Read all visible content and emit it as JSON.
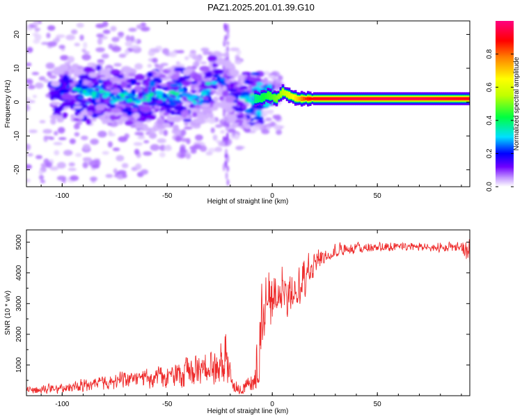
{
  "title": "PAZ1.2025.201.01.39.G10",
  "chart_data": [
    {
      "type": "heatmap",
      "title": "PAZ1.2025.201.01.39.G10",
      "xlabel": "Height of straight line (km)",
      "ylabel": "Frequency (Hz)",
      "xlim": [
        -117,
        94
      ],
      "ylim": [
        -25,
        24
      ],
      "xticks": [
        -100,
        -50,
        0,
        50
      ],
      "xtick_labels": [
        "-100",
        "-50",
        "0",
        "50"
      ],
      "yticks": [
        -20,
        -10,
        0,
        10,
        20
      ],
      "ytick_labels": [
        "-20",
        "-10",
        "0",
        "10",
        "20"
      ],
      "colorbar": {
        "label": "Normalized spectral amplitude",
        "range": [
          0,
          1
        ],
        "ticks": [
          0,
          0.2,
          0.4,
          0.6,
          0.8
        ],
        "tick_labels": [
          "0.0",
          "0.2",
          "0.4",
          "0.6",
          "0.8"
        ],
        "colormap": [
          "#ffffff",
          "#c8a0ff",
          "#7000ff",
          "#0000ff",
          "#00e0ff",
          "#00ff40",
          "#c0ff00",
          "#ffff00",
          "#ff8000",
          "#ff0000",
          "#ff0080"
        ]
      },
      "grid": false,
      "ridge": {
        "x": [
          -115,
          -105,
          -95,
          -88,
          -82,
          -76,
          -70,
          -62,
          -55,
          -50,
          -45,
          -40,
          -35,
          -30,
          -26,
          -22,
          -18,
          -14,
          -10,
          -6,
          -2,
          2,
          5,
          8,
          12,
          16,
          20,
          30,
          50,
          70,
          92
        ],
        "y": [
          1,
          2,
          3,
          2,
          3,
          1,
          2,
          0,
          2,
          1,
          3,
          2,
          0,
          5,
          7,
          6,
          1,
          0,
          1,
          1,
          2,
          1,
          3,
          2,
          1,
          1,
          1,
          1,
          1,
          1,
          1
        ],
        "amplitude": [
          0.15,
          0.25,
          0.3,
          0.3,
          0.3,
          0.25,
          0.3,
          0.3,
          0.35,
          0.25,
          0.35,
          0.3,
          0.25,
          0.3,
          0.2,
          0.2,
          0.2,
          0.25,
          0.35,
          0.4,
          0.45,
          0.5,
          0.55,
          0.6,
          0.7,
          0.85,
          0.9,
          0.92,
          0.95,
          0.95,
          0.9
        ]
      }
    },
    {
      "type": "line",
      "xlabel": "Height of straight line (km)",
      "ylabel": "SNR (10 * v/v)",
      "xlim": [
        -117,
        94
      ],
      "ylim": [
        0,
        5400
      ],
      "xticks": [
        -100,
        -50,
        0,
        50
      ],
      "xtick_labels": [
        "-100",
        "-50",
        "0",
        "50"
      ],
      "yticks": [
        1000,
        2000,
        3000,
        4000,
        5000
      ],
      "ytick_labels": [
        "1000",
        "2000",
        "3000",
        "4000",
        "5000"
      ],
      "grid": false,
      "color": "#ee2a2a",
      "series": [
        {
          "x": [
            -117,
            -110,
            -100,
            -90,
            -80,
            -72,
            -65,
            -58,
            -50,
            -45,
            -40,
            -35,
            -30,
            -25,
            -22,
            -20,
            -18,
            -15,
            -12,
            -10,
            -8,
            -6,
            -4,
            -2,
            0,
            2,
            4,
            6,
            8,
            10,
            12,
            14,
            16,
            18,
            20,
            22,
            25,
            30,
            35,
            40,
            50,
            60,
            70,
            80,
            90,
            94
          ],
          "y": [
            150,
            180,
            250,
            350,
            450,
            500,
            550,
            650,
            700,
            750,
            800,
            850,
            900,
            950,
            900,
            800,
            200,
            100,
            250,
            450,
            200,
            600,
            2700,
            3100,
            3300,
            3400,
            3300,
            3400,
            3000,
            3300,
            3200,
            3500,
            3900,
            4100,
            4300,
            4400,
            4500,
            4600,
            4700,
            4750,
            4800,
            4800,
            4850,
            4800,
            4850,
            4700
          ],
          "upper": [
            300,
            380,
            450,
            600,
            700,
            850,
            800,
            1000,
            1100,
            1200,
            1400,
            1500,
            1700,
            1900,
            2800,
            1800,
            600,
            500,
            700,
            1000,
            1300,
            4800,
            4000,
            4400,
            4100,
            4300,
            4700,
            4500,
            4100,
            4300,
            4400,
            4600,
            4800,
            4900,
            4950,
            5000,
            5000,
            5050,
            5050,
            5050,
            5050,
            5050,
            5050,
            5050,
            5050,
            5300
          ],
          "lower": [
            20,
            30,
            50,
            70,
            80,
            90,
            120,
            150,
            100,
            150,
            150,
            200,
            200,
            250,
            150,
            100,
            20,
            10,
            30,
            80,
            10,
            200,
            1400,
            1700,
            2100,
            2500,
            2600,
            2500,
            2400,
            2600,
            2700,
            2800,
            3000,
            3400,
            3800,
            4000,
            4300,
            4450,
            4550,
            4600,
            4650,
            4650,
            4650,
            4650,
            4650,
            3800
          ]
        }
      ]
    }
  ]
}
